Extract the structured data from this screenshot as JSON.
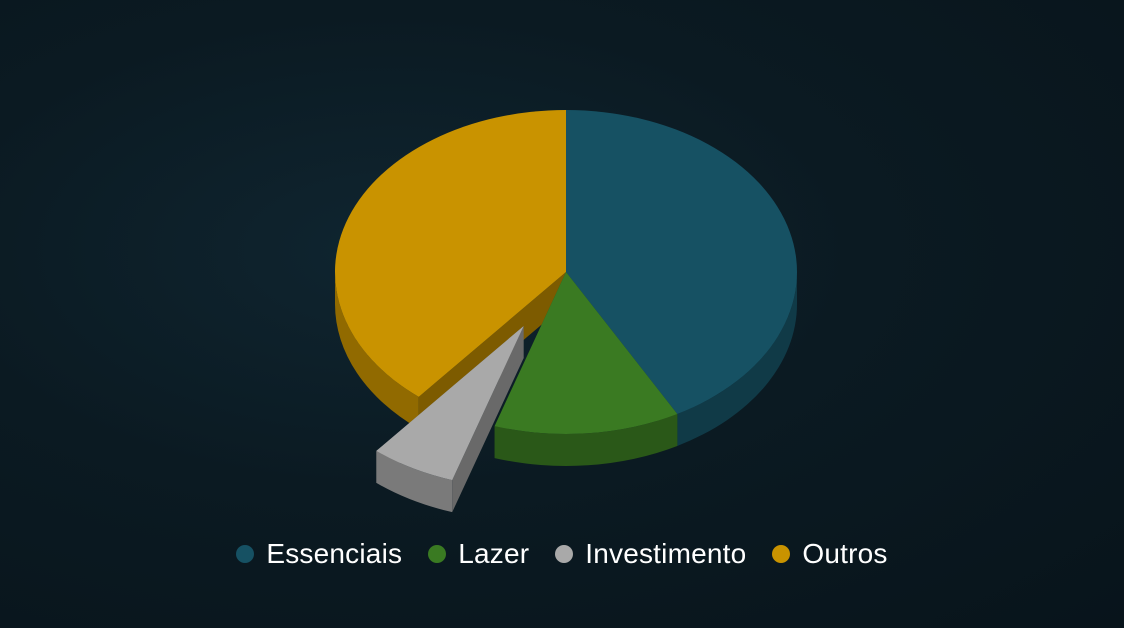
{
  "chart_data": {
    "type": "pie",
    "style": "3d-exploded",
    "title": "",
    "categories": [
      "Essenciais",
      "Lazer",
      "Investimento",
      "Outros"
    ],
    "values": [
      42,
      13,
      6,
      39
    ],
    "exploded": [
      "Investimento"
    ],
    "start_angle_deg": 0,
    "direction": "clockwise",
    "legend_position": "bottom",
    "colors": {
      "Essenciais": "#165163",
      "Lazer": "#3a7a22",
      "Investimento": "#a9a9a9",
      "Outros": "#c99300"
    }
  },
  "legend": {
    "items": [
      {
        "label": "Essenciais",
        "color": "#165163"
      },
      {
        "label": "Lazer",
        "color": "#3a7a22"
      },
      {
        "label": "Investimento",
        "color": "#a9a9a9"
      },
      {
        "label": "Outros",
        "color": "#c99300"
      }
    ]
  }
}
